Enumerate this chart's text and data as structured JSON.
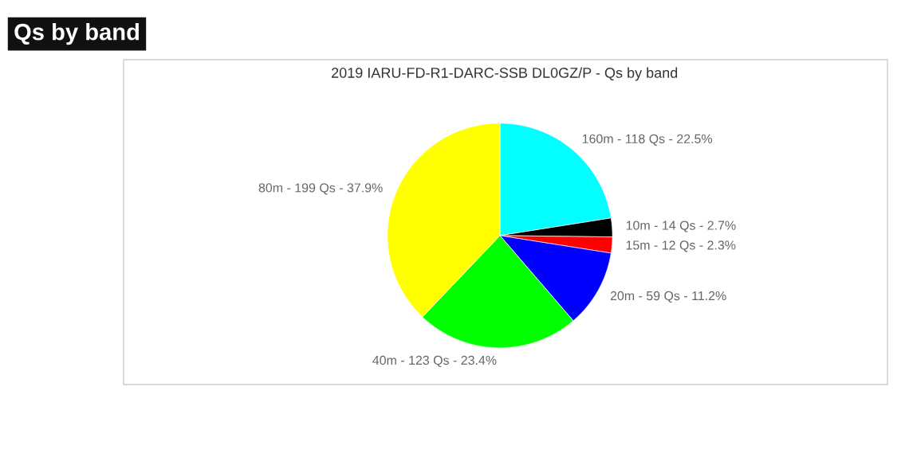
{
  "chart_data": {
    "type": "pie",
    "title": "Qs by band",
    "subtitle": "2019 IARU-FD-R1-DARC-SSB DL0GZ/P - Qs by band",
    "categories": [
      "160m - 118 Qs - 22.5%",
      "10m - 14 Qs - 2.7%",
      "15m - 12 Qs - 2.3%",
      "20m - 59 Qs - 11.2%",
      "40m - 123 Qs - 23.4%",
      "80m - 199 Qs - 37.9%"
    ],
    "values": [
      22.5,
      2.7,
      2.3,
      11.2,
      23.4,
      37.9
    ],
    "colors": [
      "#00ffff",
      "#000000",
      "#ff0000",
      "#0000ff",
      "#00ff00",
      "#ffff00"
    ],
    "legend": false
  }
}
